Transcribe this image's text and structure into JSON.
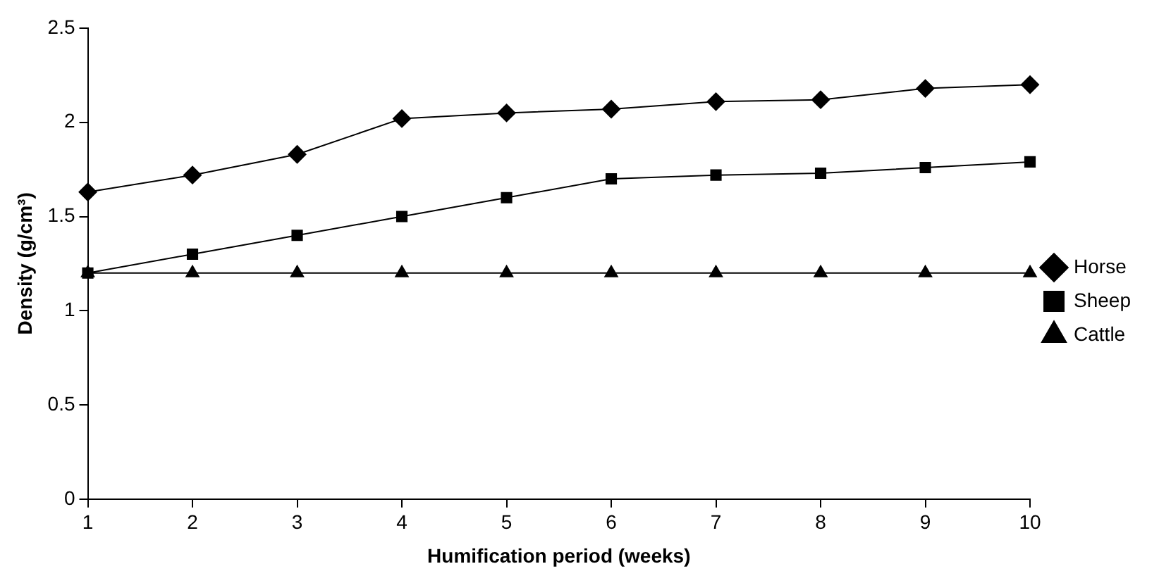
{
  "chart_data": {
    "type": "line",
    "xlabel": "Humification period (weeks)",
    "ylabel": "Density (g/cm³)",
    "x": [
      1,
      2,
      3,
      4,
      5,
      6,
      7,
      8,
      9,
      10
    ],
    "xlim": [
      1,
      10
    ],
    "xticks": [
      1,
      2,
      3,
      4,
      5,
      6,
      7,
      8,
      9,
      10
    ],
    "ylim": [
      0,
      2.5
    ],
    "yticks": [
      0,
      0.5,
      1,
      1.5,
      2,
      2.5
    ],
    "grid": false,
    "legend": "right",
    "series": [
      {
        "name": "Horse",
        "color": "#000000",
        "marker": "diamond",
        "values": [
          1.63,
          1.72,
          1.83,
          2.02,
          2.05,
          2.07,
          2.11,
          2.12,
          2.18,
          2.2
        ]
      },
      {
        "name": "Sheep",
        "color": "#000000",
        "marker": "square",
        "values": [
          1.2,
          1.3,
          1.4,
          1.5,
          1.6,
          1.7,
          1.72,
          1.73,
          1.76,
          1.79
        ]
      },
      {
        "name": "Cattle",
        "color": "#000000",
        "marker": "triangle",
        "values": [
          1.2,
          1.2,
          1.2,
          1.2,
          1.2,
          1.2,
          1.2,
          1.2,
          1.2,
          1.2
        ]
      }
    ]
  }
}
